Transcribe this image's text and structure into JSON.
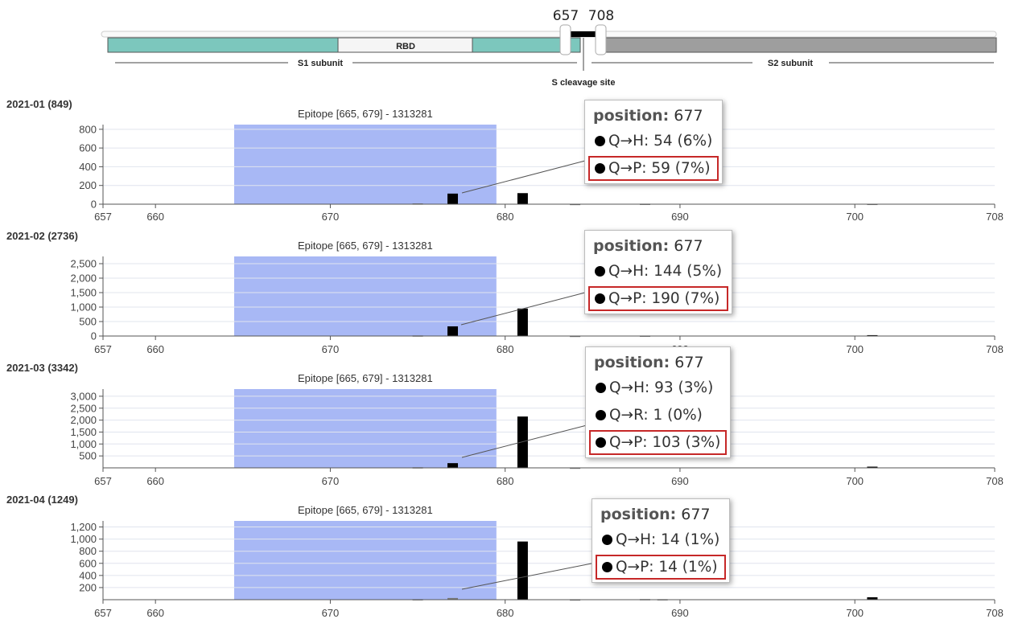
{
  "header": {
    "range_start_label": "657",
    "range_end_label": "708",
    "segments": {
      "rbd_label": "RBD",
      "s1_label": "S1 subunit",
      "s2_label": "S2 subunit",
      "cleavage_label": "S cleavage site"
    }
  },
  "colors": {
    "s1": "#7cc7bd",
    "rbd": "#f5f5f5",
    "s2": "#9e9e9e",
    "epitope": "#a8b8f5",
    "bar": "#000000",
    "highlight": "#c62828"
  },
  "chart_data": [
    {
      "type": "bar",
      "title": "2021-01 (849)",
      "annotation": "Epitope [665, 679] - 1313281",
      "epitope_range": [
        665,
        679
      ],
      "xlim": [
        657,
        708
      ],
      "x_ticks": [
        "657",
        "660",
        "670",
        "680",
        "690",
        "700",
        "708"
      ],
      "ylim": [
        0,
        850
      ],
      "y_ticks": [
        "0",
        "200",
        "400",
        "600",
        "800"
      ],
      "y_tick_values": [
        0,
        200,
        400,
        600,
        800
      ],
      "bars": [
        {
          "x": 675,
          "y": 8
        },
        {
          "x": 677,
          "y": 113
        },
        {
          "x": 681,
          "y": 118
        },
        {
          "x": 684,
          "y": 3
        },
        {
          "x": 688,
          "y": 5
        },
        {
          "x": 701,
          "y": 4
        }
      ],
      "tooltip": {
        "position_label": "position:",
        "position": "677",
        "rows": [
          {
            "text": "Q→H: 54 (6%)",
            "highlight": false
          },
          {
            "text": "Q→P: 59 (7%)",
            "highlight": true
          }
        ]
      }
    },
    {
      "type": "bar",
      "title": "2021-02 (2736)",
      "annotation": "Epitope [665, 679] - 1313281",
      "epitope_range": [
        665,
        679
      ],
      "xlim": [
        657,
        708
      ],
      "x_ticks": [
        "657",
        "660",
        "670",
        "680",
        "690",
        "700",
        "708"
      ],
      "ylim": [
        0,
        2750
      ],
      "y_ticks": [
        "0",
        "500",
        "1,000",
        "1,500",
        "2,000",
        "2,500"
      ],
      "y_tick_values": [
        0,
        500,
        1000,
        1500,
        2000,
        2500
      ],
      "bars": [
        {
          "x": 675,
          "y": 20
        },
        {
          "x": 677,
          "y": 334
        },
        {
          "x": 681,
          "y": 950
        },
        {
          "x": 684,
          "y": 8
        },
        {
          "x": 688,
          "y": 15
        },
        {
          "x": 701,
          "y": 30
        }
      ],
      "tooltip": {
        "position_label": "position:",
        "position": "677",
        "rows": [
          {
            "text": "Q→H: 144 (5%)",
            "highlight": false
          },
          {
            "text": "Q→P: 190 (7%)",
            "highlight": true
          }
        ]
      }
    },
    {
      "type": "bar",
      "title": "2021-03 (3342)",
      "annotation": "Epitope [665, 679] - 1313281",
      "epitope_range": [
        665,
        679
      ],
      "xlim": [
        657,
        708
      ],
      "x_ticks": [
        "657",
        "660",
        "670",
        "680",
        "690",
        "700",
        "708"
      ],
      "ylim": [
        0,
        3300
      ],
      "y_ticks": [
        "500",
        "1,000",
        "1,500",
        "2,000",
        "2,500",
        "3,000"
      ],
      "y_tick_values": [
        500,
        1000,
        1500,
        2000,
        2500,
        3000
      ],
      "bars": [
        {
          "x": 675,
          "y": 25
        },
        {
          "x": 677,
          "y": 197
        },
        {
          "x": 681,
          "y": 2150
        },
        {
          "x": 684,
          "y": 10
        },
        {
          "x": 701,
          "y": 50
        }
      ],
      "tooltip": {
        "position_label": "position:",
        "position": "677",
        "rows": [
          {
            "text": "Q→H: 93 (3%)",
            "highlight": false
          },
          {
            "text": "Q→R: 1 (0%)",
            "highlight": false
          },
          {
            "text": "Q→P: 103 (3%)",
            "highlight": true
          }
        ]
      }
    },
    {
      "type": "bar",
      "title": "2021-04 (1249)",
      "annotation": "Epitope [665, 679] - 1313281",
      "epitope_range": [
        665,
        679
      ],
      "xlim": [
        657,
        708
      ],
      "x_ticks": [
        "657",
        "660",
        "670",
        "680",
        "690",
        "700",
        "708"
      ],
      "ylim": [
        0,
        1300
      ],
      "y_ticks": [
        "200",
        "400",
        "600",
        "800",
        "1,000",
        "1,200"
      ],
      "y_tick_values": [
        200,
        400,
        600,
        800,
        1000,
        1200
      ],
      "bars": [
        {
          "x": 675,
          "y": 8
        },
        {
          "x": 677,
          "y": 28
        },
        {
          "x": 681,
          "y": 960
        },
        {
          "x": 684,
          "y": 5
        },
        {
          "x": 688,
          "y": 10
        },
        {
          "x": 689,
          "y": 8
        },
        {
          "x": 701,
          "y": 40
        }
      ],
      "tooltip": {
        "position_label": "position:",
        "position": "677",
        "rows": [
          {
            "text": "Q→H: 14 (1%)",
            "highlight": false
          },
          {
            "text": "Q→P: 14 (1%)",
            "highlight": true
          }
        ]
      }
    }
  ]
}
